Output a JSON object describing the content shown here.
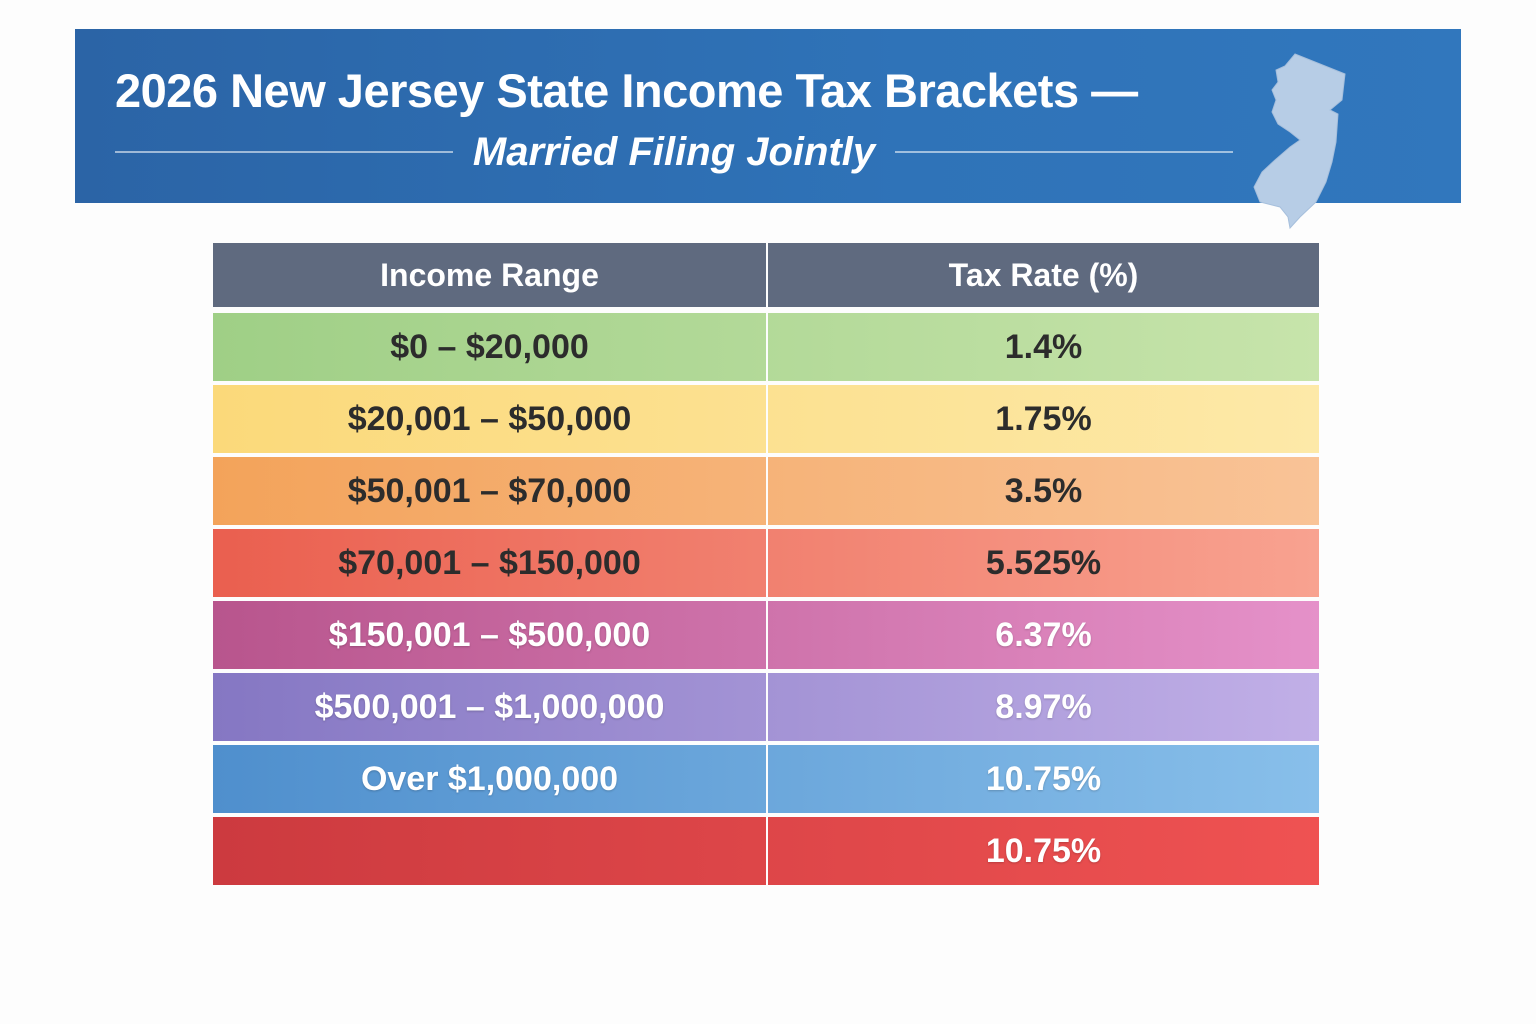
{
  "header": {
    "title": "2026 New Jersey State Income Tax Brackets —",
    "subtitle": "Married Filing Jointly",
    "icon": "new-jersey-map-icon"
  },
  "table": {
    "columns": [
      "Income Range",
      "Tax Rate (%)"
    ],
    "rows": [
      {
        "range": "$0 – $20,000",
        "rate": "1.4%",
        "colors": [
          "#9fcf86",
          "#c7e4ab"
        ],
        "text": "dark"
      },
      {
        "range": "$20,001 – $50,000",
        "rate": "1.75%",
        "colors": [
          "#fbd97a",
          "#fde9a8"
        ],
        "text": "dark"
      },
      {
        "range": "$50,001 – $70,000",
        "rate": "3.5%",
        "colors": [
          "#f3a35a",
          "#f9c397"
        ],
        "text": "dark"
      },
      {
        "range": "$70,001 – $150,000",
        "rate": "5.525%",
        "colors": [
          "#ea5f4f",
          "#f8a290"
        ],
        "text": "dark"
      },
      {
        "range": "$150,001 – $500,000",
        "rate": "6.37%",
        "colors": [
          "#b8558d",
          "#e591c9"
        ],
        "text": "light"
      },
      {
        "range": "$500,001 – $1,000,000",
        "rate": "8.97%",
        "colors": [
          "#8577c3",
          "#c1afe7"
        ],
        "text": "light"
      },
      {
        "range": "Over $1,000,000",
        "rate": "10.75%",
        "colors": [
          "#4f8fcd",
          "#88bfea"
        ],
        "text": "light"
      },
      {
        "range": "",
        "rate": "10.75%",
        "colors": [
          "#cc3a3f",
          "#ef5252"
        ],
        "text": "light"
      }
    ]
  }
}
